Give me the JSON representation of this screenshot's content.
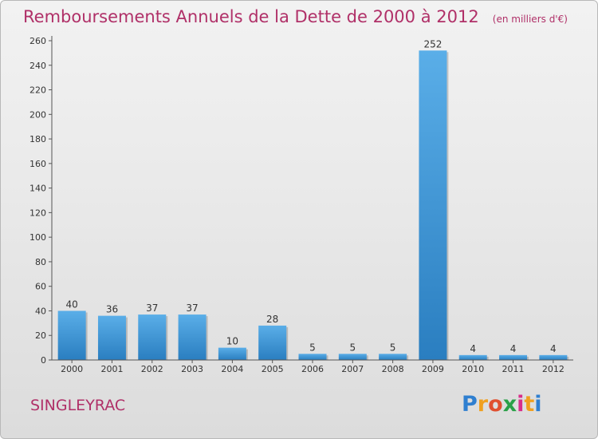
{
  "title": "Remboursements Annuels de la Dette de 2000 à 2012",
  "unit_note": "(en milliers d'€)",
  "town": "SINGLEYRAC",
  "logo": {
    "letters": [
      "P",
      "r",
      "o",
      "x",
      "i",
      "t",
      "i"
    ],
    "colors": [
      "#2f7fd0",
      "#f0a020",
      "#e05030",
      "#2aa048",
      "#d82e8a",
      "#f0a020",
      "#2f7fd0"
    ]
  },
  "colors": {
    "title": "#b03068",
    "bar_light": "#5aaee8",
    "bar_dark": "#2a7ec0"
  },
  "chart_data": {
    "type": "bar",
    "categories": [
      "2000",
      "2001",
      "2002",
      "2003",
      "2004",
      "2005",
      "2006",
      "2007",
      "2008",
      "2009",
      "2010",
      "2011",
      "2012"
    ],
    "values": [
      40,
      36,
      37,
      37,
      10,
      28,
      5,
      5,
      5,
      252,
      4,
      4,
      4
    ],
    "ylim": [
      0,
      260
    ],
    "yticks": [
      0,
      20,
      40,
      60,
      80,
      100,
      120,
      140,
      160,
      180,
      200,
      220,
      240,
      260
    ],
    "grid": false
  }
}
